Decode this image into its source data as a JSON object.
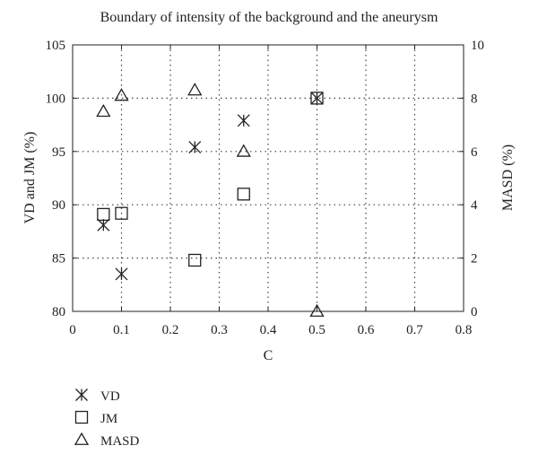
{
  "chart_data": {
    "type": "scatter",
    "title": "Boundary of intensity of the background and the aneurysm",
    "xlabel": "C",
    "ylabel": "VD and JM (%)",
    "y2label": "MASD (%)",
    "xlim": [
      0,
      0.8
    ],
    "ylim": [
      80,
      105
    ],
    "y2lim": [
      0,
      10
    ],
    "x_ticks": [
      "0",
      "0.1",
      "0.2",
      "0.3",
      "0.4",
      "0.5",
      "0.6",
      "0.7",
      "0.8"
    ],
    "y_ticks": [
      "80",
      "85",
      "90",
      "95",
      "100",
      "105"
    ],
    "y2_ticks": [
      "0",
      "2",
      "4",
      "6",
      "8",
      "10"
    ],
    "grid": true,
    "legend_position": "bottom-left",
    "series": [
      {
        "name": "VD",
        "marker": "asterisk",
        "axis": "left",
        "points": [
          {
            "x": 0.063,
            "y": 88.1
          },
          {
            "x": 0.1,
            "y": 83.5
          },
          {
            "x": 0.25,
            "y": 95.4
          },
          {
            "x": 0.35,
            "y": 97.9
          },
          {
            "x": 0.5,
            "y": 100.0
          }
        ]
      },
      {
        "name": "JM",
        "marker": "square",
        "axis": "left",
        "points": [
          {
            "x": 0.063,
            "y": 89.1
          },
          {
            "x": 0.1,
            "y": 89.2
          },
          {
            "x": 0.25,
            "y": 84.8
          },
          {
            "x": 0.35,
            "y": 91.0
          },
          {
            "x": 0.5,
            "y": 100.0
          }
        ]
      },
      {
        "name": "MASD",
        "marker": "triangle",
        "axis": "right",
        "points": [
          {
            "x": 0.063,
            "y": 7.5
          },
          {
            "x": 0.1,
            "y": 8.1
          },
          {
            "x": 0.25,
            "y": 8.3
          },
          {
            "x": 0.35,
            "y": 6.0
          },
          {
            "x": 0.5,
            "y": 0.0
          }
        ]
      }
    ]
  }
}
